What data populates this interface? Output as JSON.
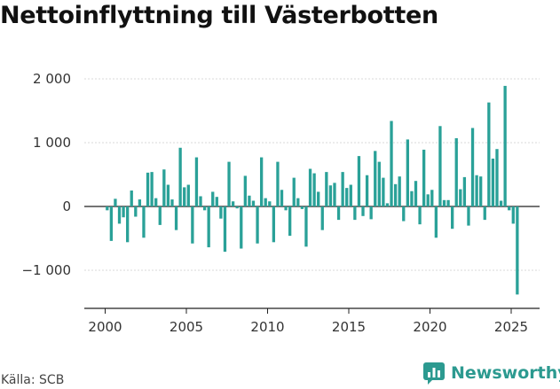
{
  "title": "Nettoinflyttning till Västerbotten",
  "source": "Källa: SCB",
  "brand": {
    "name": "Newsworthy",
    "color": "#2c9a90"
  },
  "chart_data": {
    "type": "bar",
    "title": "Nettoinflyttning till Västerbotten",
    "xlabel": "",
    "ylabel": "",
    "ylim": [
      -1500,
      2000
    ],
    "xlim": [
      2000,
      2025.6
    ],
    "grid": true,
    "bar_color": "#2aa198",
    "y_ticks": [
      {
        "value": 2000,
        "label": "2 000"
      },
      {
        "value": 1000,
        "label": "1 000"
      },
      {
        "value": 0,
        "label": "0"
      },
      {
        "value": -1000,
        "label": "−1 000"
      }
    ],
    "x_ticks": [
      {
        "value": 2000,
        "label": "2000"
      },
      {
        "value": 2005,
        "label": "2005"
      },
      {
        "value": 2010,
        "label": "2010"
      },
      {
        "value": 2015,
        "label": "2015"
      },
      {
        "value": 2020,
        "label": "2020"
      },
      {
        "value": 2025,
        "label": "2025"
      }
    ],
    "series": [
      {
        "period_start": "2000-Q1",
        "frequency": "quarterly",
        "values": [
          -60,
          -540,
          120,
          -270,
          -170,
          -560,
          250,
          -160,
          110,
          -490,
          530,
          540,
          130,
          -290,
          580,
          340,
          110,
          -370,
          920,
          300,
          340,
          -580,
          770,
          160,
          -60,
          -640,
          230,
          150,
          -190,
          -710,
          700,
          80,
          -30,
          -660,
          480,
          170,
          90,
          -580,
          770,
          130,
          80,
          -560,
          700,
          260,
          -60,
          -460,
          450,
          130,
          -40,
          -630,
          590,
          520,
          230,
          -370,
          540,
          330,
          370,
          -210,
          540,
          290,
          340,
          -210,
          790,
          -150,
          490,
          -200,
          870,
          700,
          450,
          50,
          1340,
          350,
          470,
          -230,
          1050,
          240,
          400,
          -280,
          890,
          190,
          260,
          -490,
          1260,
          100,
          100,
          -350,
          1070,
          270,
          460,
          -300,
          1230,
          490,
          470,
          -210,
          1630,
          750,
          900,
          90,
          1890,
          -60,
          -270,
          -1380
        ]
      }
    ]
  }
}
